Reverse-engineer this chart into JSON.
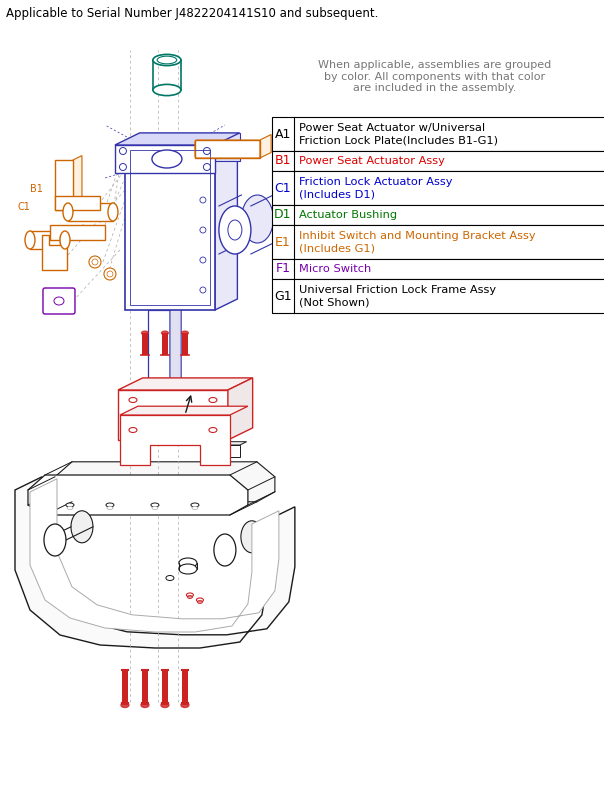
{
  "header_text": "Applicable to Serial Number J4822204141S10 and subsequent.",
  "note_text": "When applicable, assemblies are grouped\nby color. All components with that color\nare included in the assembly.",
  "table_rows": [
    {
      "label": "A1",
      "label_color": "#000000",
      "description": "Power Seat Actuator w/Universal\nFriction Lock Plate(Includes B1-G1)",
      "desc_color": "#000000"
    },
    {
      "label": "B1",
      "label_color": "#dd0000",
      "description": "Power Seat Actuator Assy",
      "desc_color": "#dd0000"
    },
    {
      "label": "C1",
      "label_color": "#0000cc",
      "description": "Friction Lock Actuator Assy\n(Includes D1)",
      "desc_color": "#0000cc"
    },
    {
      "label": "D1",
      "label_color": "#007700",
      "description": "Actuator Bushing",
      "desc_color": "#007700"
    },
    {
      "label": "E1",
      "label_color": "#cc6600",
      "description": "Inhibit Switch and Mounting Bracket Assy\n(Includes G1)",
      "desc_color": "#cc6600"
    },
    {
      "label": "F1",
      "label_color": "#7700aa",
      "description": "Micro Switch",
      "desc_color": "#7700aa"
    },
    {
      "label": "G1",
      "label_color": "#000000",
      "description": "Universal Friction Lock Frame Assy\n(Not Shown)",
      "desc_color": "#000000"
    }
  ],
  "background_color": "#ffffff"
}
